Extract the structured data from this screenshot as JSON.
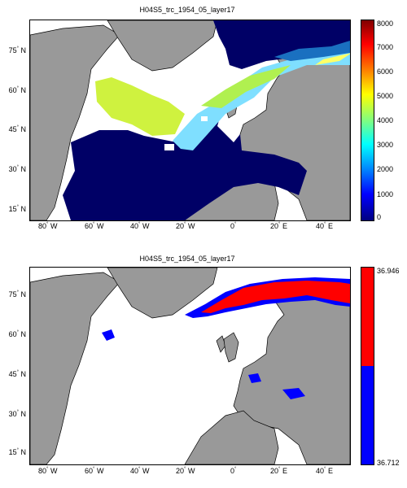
{
  "panels": [
    {
      "title": "H04S5_trc_1954_05_layer17",
      "colorbar": {
        "colormap": "jet",
        "ticks": [
          "8000",
          "7000",
          "6000",
          "5000",
          "4000",
          "3000",
          "2000",
          "1000",
          "0"
        ],
        "range": [
          0,
          8000
        ]
      }
    },
    {
      "title": "H04S5_trc_1954_05_layer17",
      "colorbar": {
        "colormap": "two-color",
        "colors": [
          "#ff0000",
          "#0000ff"
        ],
        "max_label": "36.946",
        "min_label": "36.712"
      }
    }
  ],
  "axes": {
    "lon_ticks": [
      "80",
      "60",
      "40",
      "20",
      "0",
      "20",
      "40"
    ],
    "lon_hemis": [
      "W",
      "W",
      "W",
      "W",
      "",
      "E",
      "E"
    ],
    "lat_ticks": [
      "75",
      "60",
      "45",
      "30",
      "15"
    ],
    "lat_hemi": "N",
    "lon_range": [
      -90,
      50
    ],
    "lat_range": [
      10,
      85
    ]
  },
  "colors": {
    "land": "#999999",
    "ocean_deep": "#000066",
    "no_data": "#ffffff"
  }
}
